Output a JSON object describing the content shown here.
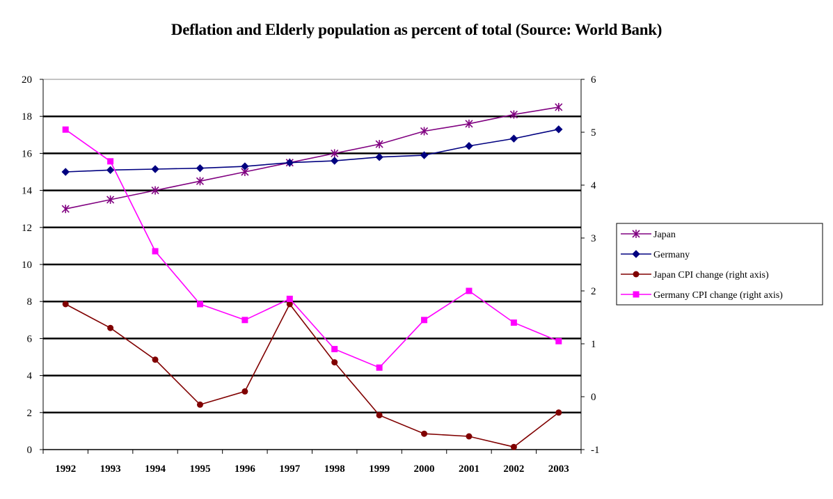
{
  "chart_data": {
    "type": "line",
    "title": "Deflation and Elderly population as percent of total (Source: World Bank)",
    "categories": [
      "1992",
      "1993",
      "1994",
      "1995",
      "1996",
      "1997",
      "1998",
      "1999",
      "2000",
      "2001",
      "2002",
      "2003"
    ],
    "ylim_left": [
      0,
      20
    ],
    "yticks_left": [
      "0",
      "2",
      "4",
      "6",
      "8",
      "10",
      "12",
      "14",
      "16",
      "18",
      "20"
    ],
    "ylim_right": [
      -1,
      6
    ],
    "yticks_right": [
      "-1",
      "0",
      "1",
      "2",
      "3",
      "4",
      "5",
      "6"
    ],
    "grid": true,
    "legend_position": "right",
    "series": [
      {
        "name": "Japan",
        "axis": "left",
        "color": "#800080",
        "marker": "asterisk",
        "values": [
          13.0,
          13.5,
          14.0,
          14.5,
          15.0,
          15.5,
          16.0,
          16.5,
          17.2,
          17.6,
          18.1,
          18.5
        ]
      },
      {
        "name": "Germany",
        "axis": "left",
        "color": "#000080",
        "marker": "diamond",
        "values": [
          15.0,
          15.1,
          15.15,
          15.2,
          15.3,
          15.5,
          15.6,
          15.8,
          15.9,
          16.4,
          16.8,
          17.3
        ]
      },
      {
        "name": "Japan CPI change (right axis)",
        "axis": "right",
        "color": "#800000",
        "marker": "circle",
        "values": [
          1.75,
          1.3,
          0.7,
          -0.15,
          0.1,
          1.75,
          0.65,
          -0.35,
          -0.7,
          -0.75,
          -0.95,
          -0.3
        ]
      },
      {
        "name": "Germany CPI change (right axis)",
        "axis": "right",
        "color": "#FF00FF",
        "marker": "square",
        "values": [
          5.05,
          4.45,
          2.75,
          1.75,
          1.45,
          1.85,
          0.9,
          0.55,
          1.45,
          2.0,
          1.4,
          1.05
        ]
      }
    ]
  }
}
